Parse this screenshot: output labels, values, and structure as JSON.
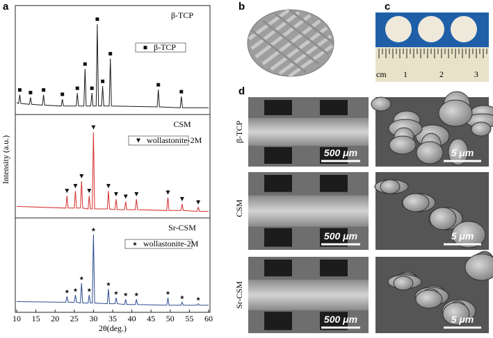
{
  "chart_data": [
    {
      "type": "line",
      "label": "β-TCP",
      "legend": "β-TCP",
      "marker": "square",
      "color": "#1a1a1a",
      "ylabel": "Intensity (a.u.)",
      "x": [
        10,
        10.5,
        10.8,
        11.1,
        13.3,
        13.6,
        13.9,
        16.7,
        17,
        17.3,
        21.6,
        21.9,
        22.2,
        25.5,
        25.8,
        26.1,
        27.5,
        27.8,
        28.1,
        29.3,
        29.6,
        29.9,
        30.7,
        31,
        31.3,
        32.1,
        32.4,
        32.7,
        34.1,
        34.4,
        34.7,
        46.6,
        46.9,
        47.2,
        52.6,
        52.9,
        53.2,
        60
      ],
      "values": [
        9,
        8,
        18,
        8,
        7,
        15,
        7,
        6,
        18,
        6,
        5,
        13,
        5,
        5,
        20,
        5,
        5,
        48,
        5,
        5,
        20,
        5,
        5,
        100,
        5,
        5,
        28,
        5,
        5,
        60,
        5,
        4,
        24,
        4,
        3,
        16,
        3,
        3
      ],
      "marker_x": [
        10.8,
        13.6,
        17,
        21.9,
        25.8,
        27.8,
        29.6,
        31,
        32.4,
        34.4,
        46.9,
        52.9
      ],
      "xlim": [
        10,
        60
      ],
      "ylim": [
        0,
        115
      ]
    },
    {
      "type": "line",
      "label": "CSM",
      "legend": "wollastonite-2M",
      "marker": "triangle",
      "color": "#d62b2b",
      "x": [
        10,
        22.8,
        23.1,
        23.4,
        25,
        25.3,
        25.6,
        26.6,
        26.9,
        27.2,
        28.6,
        28.9,
        29.2,
        29.7,
        30,
        30.3,
        33.6,
        33.9,
        34.2,
        35.6,
        35.9,
        36.2,
        38.1,
        38.4,
        38.7,
        40.9,
        41.2,
        41.5,
        49.1,
        49.4,
        49.7,
        52.8,
        53.1,
        53.4,
        57,
        57.3,
        57.6,
        60
      ],
      "values": [
        9,
        7,
        22,
        7,
        7,
        28,
        7,
        7,
        40,
        7,
        6,
        22,
        6,
        6,
        100,
        6,
        6,
        28,
        6,
        5,
        18,
        5,
        5,
        15,
        5,
        5,
        18,
        5,
        4,
        20,
        4,
        4,
        12,
        4,
        3,
        8,
        3,
        3
      ],
      "marker_x": [
        23.1,
        25.3,
        26.9,
        28.9,
        30,
        33.9,
        35.9,
        38.4,
        41.2,
        49.4,
        53.1,
        57.3
      ],
      "xlim": [
        10,
        60
      ],
      "ylim": [
        0,
        115
      ]
    },
    {
      "type": "line",
      "label": "Sr-CSM",
      "legend": "wollastonite-2M",
      "marker": "star",
      "color": "#2a4a8f",
      "x": [
        10,
        22.8,
        23.1,
        23.4,
        25,
        25.3,
        25.6,
        26.6,
        26.9,
        27.2,
        28.6,
        28.9,
        29.2,
        29.7,
        30,
        30.3,
        33.6,
        33.9,
        34.2,
        35.6,
        35.9,
        36.2,
        38.1,
        38.4,
        38.7,
        40.9,
        41.2,
        41.5,
        49.1,
        49.4,
        49.7,
        52.8,
        53.1,
        53.4,
        57,
        57.3,
        57.6,
        60
      ],
      "values": [
        9,
        8,
        16,
        8,
        8,
        18,
        8,
        7,
        34,
        7,
        7,
        18,
        7,
        7,
        100,
        7,
        6,
        26,
        6,
        6,
        14,
        6,
        5,
        12,
        5,
        5,
        12,
        5,
        4,
        14,
        4,
        4,
        8,
        4,
        4,
        6,
        4,
        4
      ],
      "marker_x": [
        23.1,
        25.3,
        26.9,
        28.9,
        30,
        33.9,
        35.9,
        38.4,
        41.2,
        49.4,
        53.1,
        57.3
      ],
      "xlim": [
        10,
        60
      ],
      "ylim": [
        0,
        115
      ],
      "xticks": [
        10,
        15,
        20,
        25,
        30,
        35,
        40,
        45,
        50,
        55,
        60
      ],
      "xlabel": "2θ(deg.)"
    }
  ],
  "figure": {
    "panels": [
      "a",
      "b",
      "c",
      "d"
    ],
    "ruler": [
      "cm",
      "1",
      "2",
      "3"
    ],
    "sem_rows": [
      "β-TCP",
      "CSM",
      "Sr-CSM"
    ],
    "scale_bars": [
      "500 μm",
      "5 μm",
      "500 μm",
      "5 μm",
      "500 μm",
      "5 μm"
    ]
  }
}
